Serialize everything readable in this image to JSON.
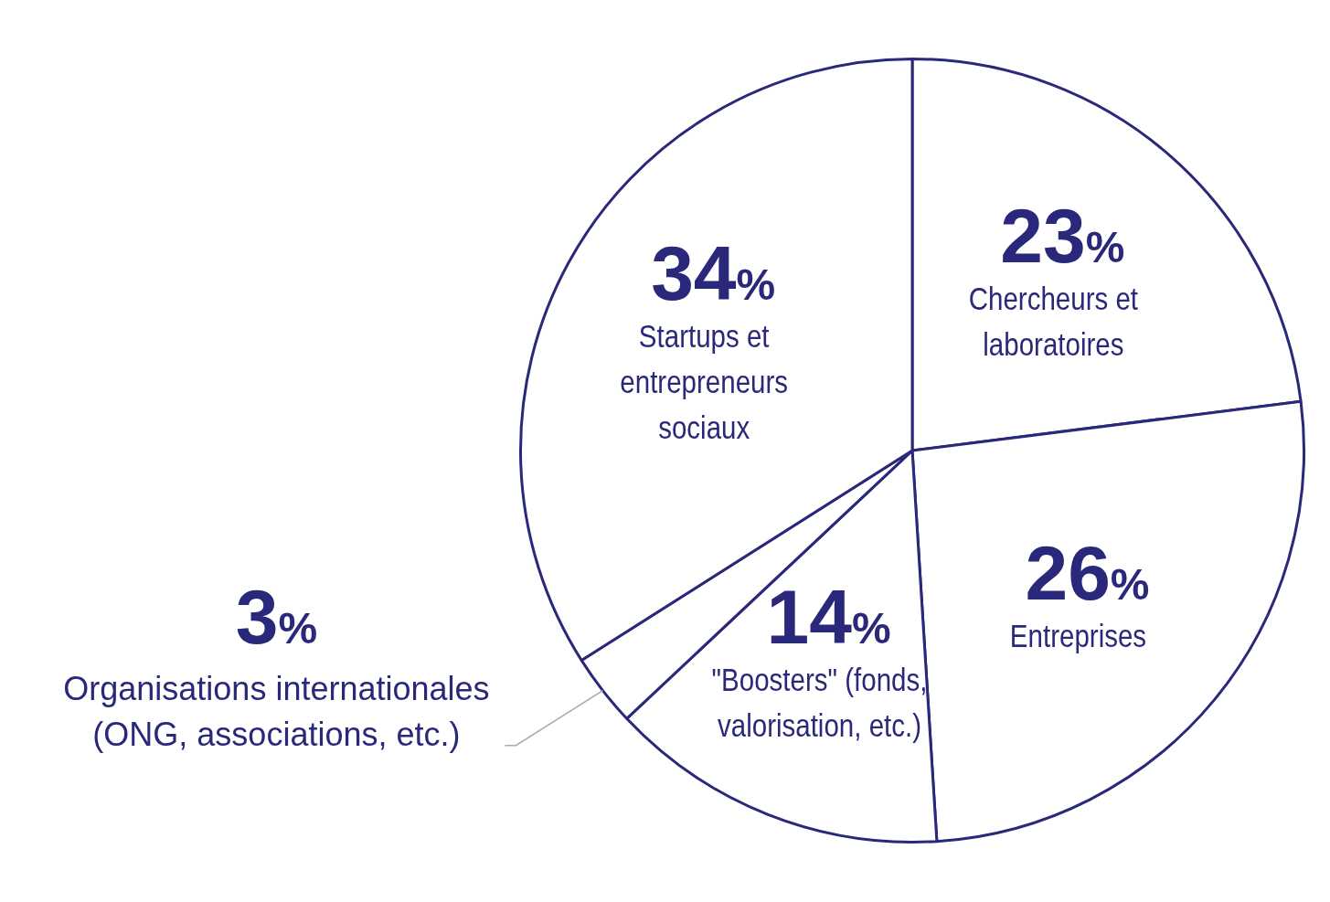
{
  "chart_data": {
    "type": "pie",
    "categories": [
      "Chercheurs et laboratoires",
      "Entreprises",
      "\"Boosters\" (fonds, valorisation, etc.)",
      "Organisations internationales (ONG, associations, etc.)",
      "Startups et entrepreneurs sociaux"
    ],
    "values": [
      23,
      26,
      14,
      3,
      34
    ],
    "value_labels": [
      "23%",
      "26%",
      "14%",
      "3%",
      "34%"
    ],
    "colors": [
      "#ffffff",
      "#ffffff",
      "#ffffff",
      "#ffffff",
      "#ffffff"
    ],
    "color": "#29287a",
    "legend": false
  }
}
